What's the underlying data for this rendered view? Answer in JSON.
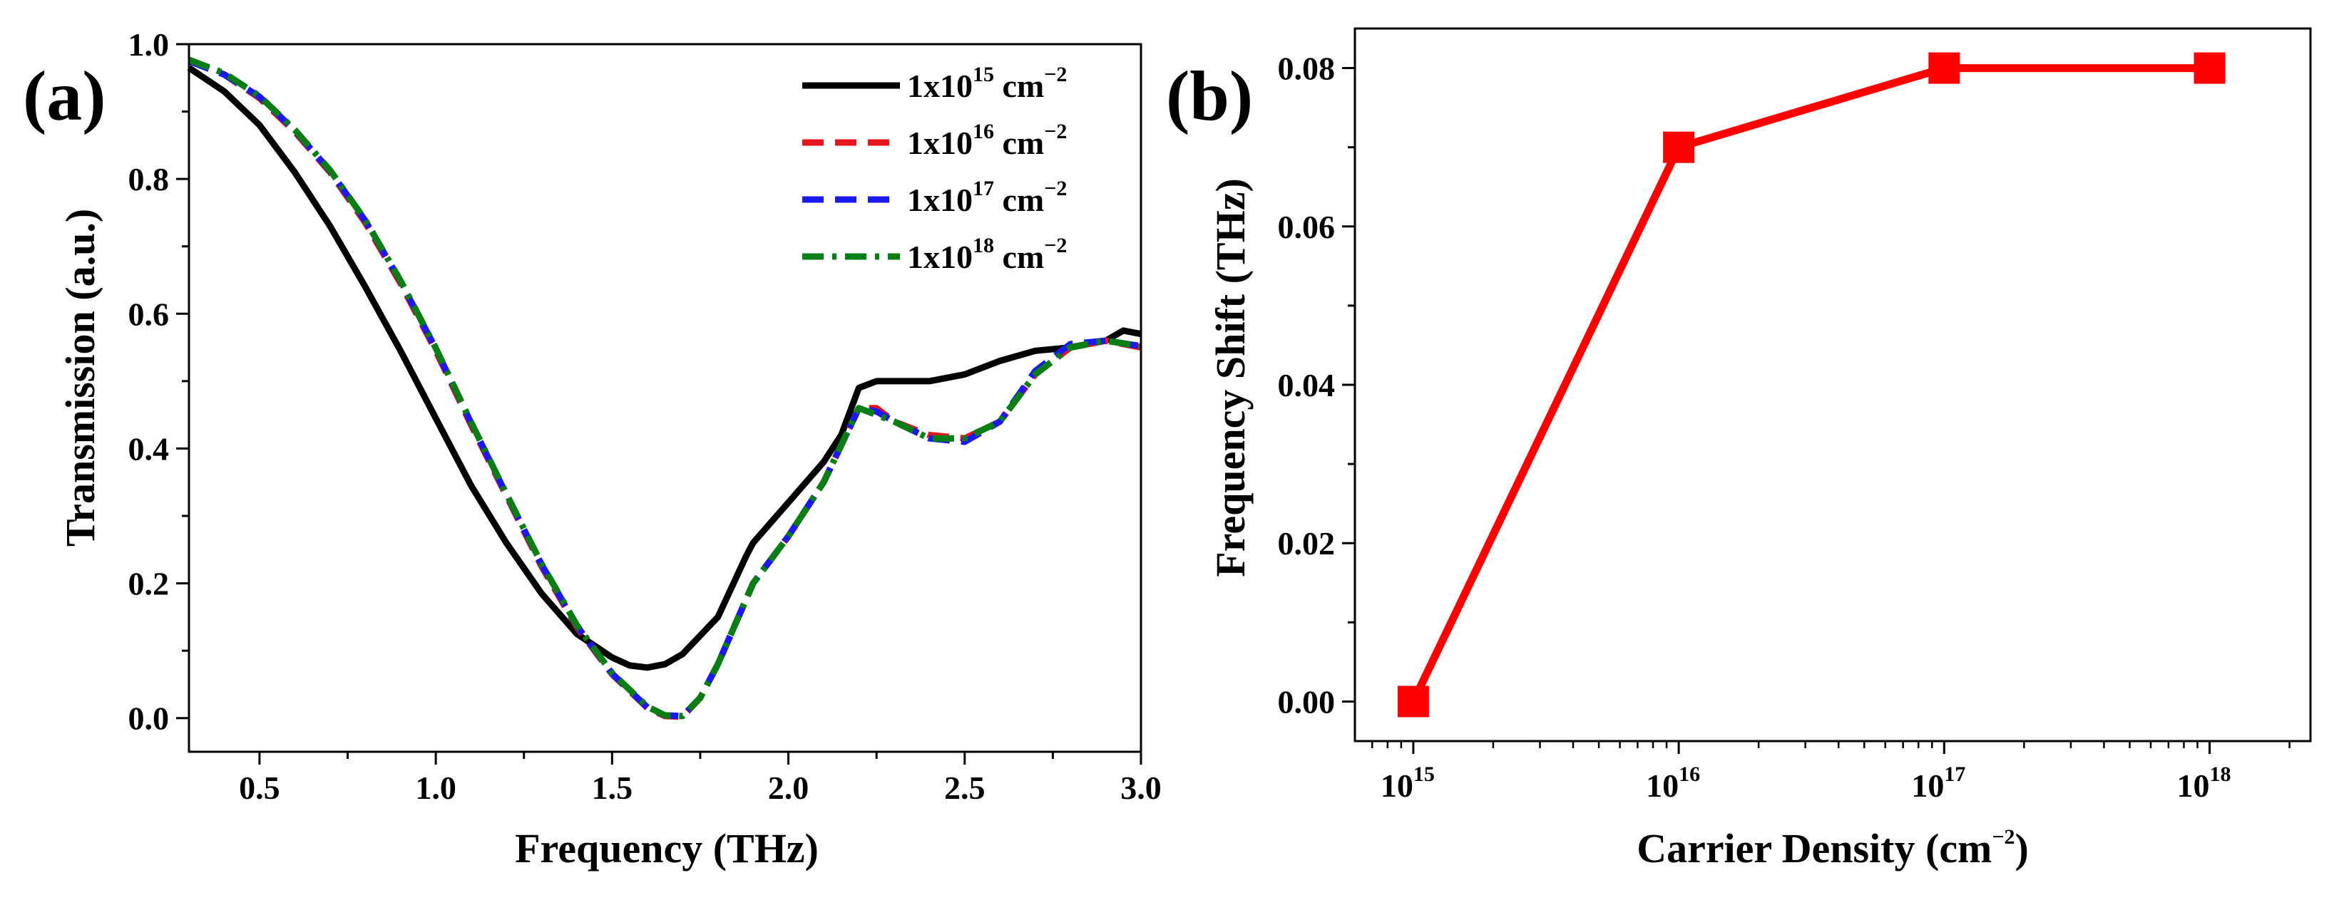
{
  "chart_data": [
    {
      "panel": "(a)",
      "type": "line",
      "xlabel": "Frequency (THz)",
      "ylabel": "Transmission (a.u.)",
      "xlim": [
        0.3,
        3.0
      ],
      "ylim": [
        -0.05,
        1.0
      ],
      "xticks": [
        0.5,
        1.0,
        1.5,
        2.0,
        2.5,
        3.0
      ],
      "xtick_labels": [
        "0.5",
        "1.0",
        "1.5",
        "2.0",
        "2.5",
        "3.0"
      ],
      "yticks": [
        0.0,
        0.2,
        0.4,
        0.6,
        0.8,
        1.0
      ],
      "ytick_labels": [
        "0.0",
        "0.2",
        "0.4",
        "0.6",
        "0.8",
        "1.0"
      ],
      "legend_position": "top-right",
      "series": [
        {
          "name": "1x10",
          "exp": "15",
          "unit": " cm",
          "unit_exp": "−2",
          "color": "#000000",
          "style": "solid",
          "x": [
            0.3,
            0.4,
            0.5,
            0.6,
            0.7,
            0.8,
            0.9,
            1.0,
            1.1,
            1.2,
            1.3,
            1.4,
            1.5,
            1.55,
            1.6,
            1.65,
            1.7,
            1.8,
            1.88,
            1.9,
            2.0,
            2.1,
            2.15,
            2.2,
            2.25,
            2.3,
            2.4,
            2.5,
            2.6,
            2.7,
            2.8,
            2.9,
            2.95,
            3.0
          ],
          "y": [
            0.965,
            0.93,
            0.88,
            0.81,
            0.73,
            0.64,
            0.545,
            0.445,
            0.345,
            0.26,
            0.185,
            0.125,
            0.09,
            0.078,
            0.075,
            0.08,
            0.095,
            0.15,
            0.24,
            0.26,
            0.32,
            0.38,
            0.42,
            0.49,
            0.5,
            0.5,
            0.5,
            0.51,
            0.53,
            0.545,
            0.55,
            0.56,
            0.575,
            0.57
          ]
        },
        {
          "name": "1x10",
          "exp": "16",
          "unit": " cm",
          "unit_exp": "−2",
          "color": "#e8141c",
          "style": "dashed",
          "x": [
            0.3,
            0.4,
            0.5,
            0.6,
            0.7,
            0.8,
            0.9,
            1.0,
            1.1,
            1.2,
            1.3,
            1.4,
            1.5,
            1.6,
            1.65,
            1.7,
            1.75,
            1.8,
            1.85,
            1.9,
            2.0,
            2.1,
            2.2,
            2.25,
            2.3,
            2.4,
            2.5,
            2.6,
            2.7,
            2.8,
            2.9,
            3.0
          ],
          "y": [
            0.975,
            0.955,
            0.92,
            0.87,
            0.81,
            0.735,
            0.645,
            0.545,
            0.435,
            0.33,
            0.225,
            0.135,
            0.065,
            0.015,
            0.003,
            0.002,
            0.03,
            0.08,
            0.14,
            0.2,
            0.27,
            0.35,
            0.46,
            0.46,
            0.44,
            0.42,
            0.415,
            0.44,
            0.51,
            0.55,
            0.56,
            0.55
          ]
        },
        {
          "name": "1x10",
          "exp": "17",
          "unit": " cm",
          "unit_exp": "−2",
          "color": "#1a1aee",
          "style": "dashed",
          "x": [
            0.3,
            0.4,
            0.5,
            0.6,
            0.7,
            0.8,
            0.9,
            1.0,
            1.1,
            1.2,
            1.3,
            1.4,
            1.5,
            1.6,
            1.65,
            1.7,
            1.75,
            1.8,
            1.85,
            1.9,
            2.0,
            2.1,
            2.2,
            2.25,
            2.3,
            2.4,
            2.5,
            2.6,
            2.7,
            2.8,
            2.9,
            3.0
          ],
          "y": [
            0.975,
            0.955,
            0.922,
            0.872,
            0.812,
            0.738,
            0.648,
            0.548,
            0.438,
            0.332,
            0.228,
            0.137,
            0.066,
            0.016,
            0.004,
            0.003,
            0.03,
            0.08,
            0.14,
            0.2,
            0.27,
            0.35,
            0.46,
            0.455,
            0.44,
            0.415,
            0.41,
            0.44,
            0.515,
            0.555,
            0.56,
            0.552
          ]
        },
        {
          "name": "1x10",
          "exp": "18",
          "unit": " cm",
          "unit_exp": "−2",
          "color": "#0a7d14",
          "style": "dashdot",
          "x": [
            0.3,
            0.4,
            0.5,
            0.6,
            0.7,
            0.8,
            0.9,
            1.0,
            1.1,
            1.2,
            1.3,
            1.4,
            1.5,
            1.6,
            1.65,
            1.7,
            1.75,
            1.8,
            1.85,
            1.9,
            2.0,
            2.1,
            2.2,
            2.25,
            2.3,
            2.4,
            2.5,
            2.6,
            2.7,
            2.8,
            2.9,
            3.0
          ],
          "y": [
            0.977,
            0.957,
            0.923,
            0.873,
            0.813,
            0.739,
            0.649,
            0.549,
            0.439,
            0.333,
            0.229,
            0.138,
            0.067,
            0.017,
            0.004,
            0.003,
            0.03,
            0.08,
            0.14,
            0.2,
            0.27,
            0.35,
            0.46,
            0.45,
            0.44,
            0.415,
            0.415,
            0.44,
            0.51,
            0.55,
            0.56,
            0.552
          ]
        }
      ]
    },
    {
      "panel": "(b)",
      "type": "line",
      "xscale": "log",
      "xlabel": "Carrier Density (cm",
      "xlabel_exp": "−2",
      "xlabel_end": ")",
      "ylabel": "Frequency Shift (THz)",
      "xlim_exp": [
        14.78,
        18.38
      ],
      "ylim": [
        -0.005,
        0.085
      ],
      "xtick_base": "10",
      "xtick_exps": [
        "15",
        "16",
        "17",
        "18"
      ],
      "yticks": [
        0.0,
        0.02,
        0.04,
        0.06,
        0.08
      ],
      "ytick_labels": [
        "0.00",
        "0.02",
        "0.04",
        "0.06",
        "0.08"
      ],
      "series": [
        {
          "name": "Frequency Shift",
          "color": "#ff0000",
          "marker": "square",
          "x_exp": [
            15,
            16,
            17,
            18
          ],
          "y": [
            0.0,
            0.07,
            0.08,
            0.08
          ]
        }
      ]
    }
  ]
}
